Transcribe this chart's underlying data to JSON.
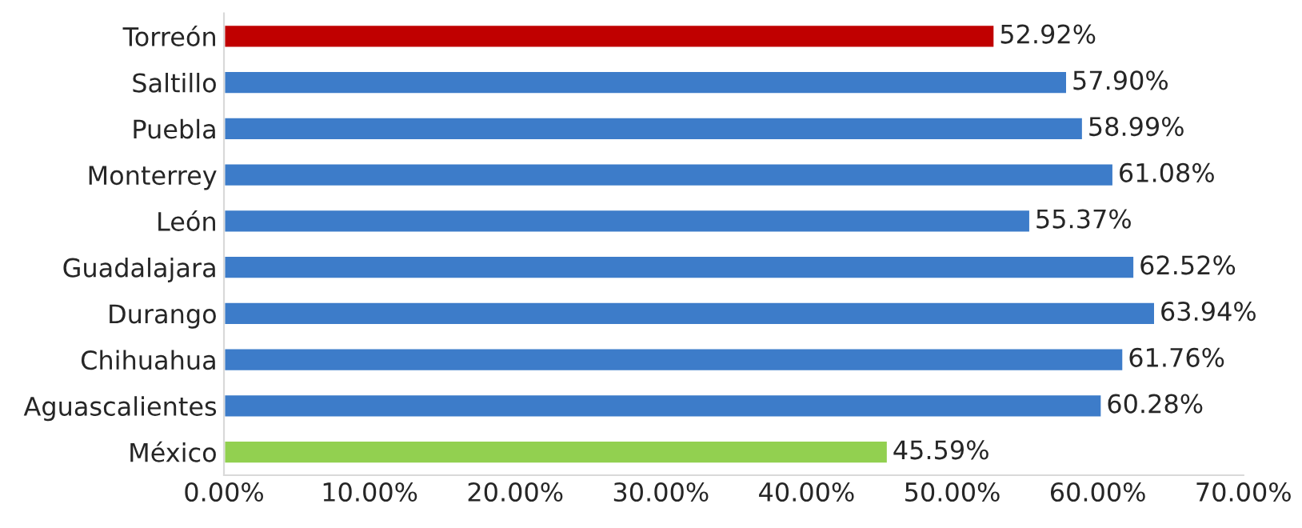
{
  "chart_data": {
    "type": "bar",
    "orientation": "horizontal",
    "categories": [
      "Torreón",
      "Saltillo",
      "Puebla",
      "Monterrey",
      "León",
      "Guadalajara",
      "Durango",
      "Chihuahua",
      "Aguascalientes",
      "México"
    ],
    "values": [
      52.92,
      57.9,
      58.99,
      61.08,
      55.37,
      62.52,
      63.94,
      61.76,
      60.28,
      45.59
    ],
    "colors": [
      "#c00000",
      "#3d7cc9",
      "#3d7cc9",
      "#3d7cc9",
      "#3d7cc9",
      "#3d7cc9",
      "#3d7cc9",
      "#3d7cc9",
      "#3d7cc9",
      "#92d050"
    ],
    "value_labels": [
      "52.92%",
      "57.90%",
      "58.99%",
      "61.08%",
      "55.37%",
      "62.52%",
      "63.94%",
      "61.76%",
      "60.28%",
      "45.59%"
    ],
    "xlim": [
      0,
      70
    ],
    "xticks": [
      {
        "value": 0,
        "label": "0.00%"
      },
      {
        "value": 10,
        "label": "10.00%"
      },
      {
        "value": 20,
        "label": "20.00%"
      },
      {
        "value": 30,
        "label": "30.00%"
      },
      {
        "value": 40,
        "label": "40.00%"
      },
      {
        "value": 50,
        "label": "50.00%"
      },
      {
        "value": 60,
        "label": "60.00%"
      },
      {
        "value": 70,
        "label": "70.00%"
      }
    ],
    "grid": false,
    "legend": false
  }
}
